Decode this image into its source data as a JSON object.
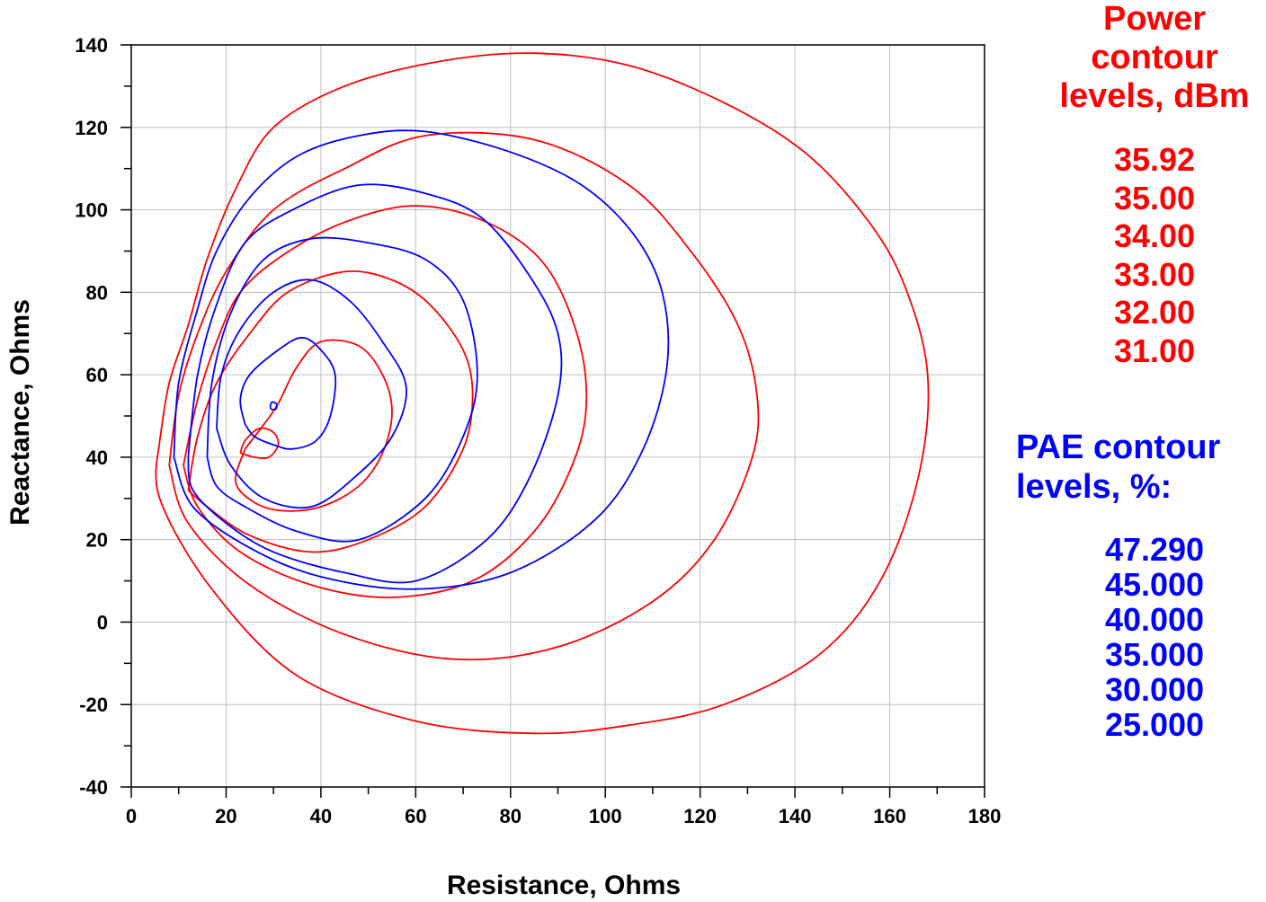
{
  "chart_data": {
    "type": "contour",
    "title": "",
    "xlabel": "Resistance, Ohms",
    "ylabel": "Reactance, Ohms",
    "xlim": [
      0,
      180
    ],
    "ylim": [
      -40,
      140
    ],
    "x_ticks": [
      0,
      20,
      40,
      60,
      80,
      100,
      120,
      140,
      160,
      180
    ],
    "y_ticks": [
      -40,
      -20,
      0,
      20,
      40,
      60,
      80,
      100,
      120,
      140
    ],
    "grid": true,
    "power_legend": {
      "title_lines": [
        "Power",
        "contour",
        "levels, dBm"
      ],
      "levels": [
        "35.92",
        "35.00",
        "34.00",
        "33.00",
        "32.00",
        "31.00"
      ]
    },
    "pae_legend": {
      "title_lines": [
        "PAE contour",
        "levels, %:"
      ],
      "levels": [
        "47.290",
        "45.000",
        "40.000",
        "35.000",
        "30.000",
        "25.000"
      ]
    },
    "colors": {
      "power": "#ff0000",
      "pae": "#0000ff",
      "grid": "#c0c0c0",
      "axis": "#000000"
    },
    "series": [
      {
        "group": "power",
        "level": "35.92",
        "points": [
          [
            23,
            41
          ],
          [
            26,
            40
          ],
          [
            29,
            40
          ],
          [
            31,
            43
          ],
          [
            30,
            46
          ],
          [
            27,
            47
          ],
          [
            24,
            44
          ],
          [
            23,
            41
          ]
        ]
      },
      {
        "group": "power",
        "level": "35.00",
        "points": [
          [
            24,
            42
          ],
          [
            28,
            48
          ],
          [
            31,
            53
          ],
          [
            35,
            62
          ],
          [
            40,
            68
          ],
          [
            48,
            67
          ],
          [
            53,
            60
          ],
          [
            55,
            51
          ],
          [
            53,
            41
          ],
          [
            48,
            33
          ],
          [
            40,
            28
          ],
          [
            32,
            27
          ],
          [
            26,
            29
          ],
          [
            22,
            34
          ],
          [
            24,
            42
          ]
        ]
      },
      {
        "group": "power",
        "level": "34.00",
        "points": [
          [
            12,
            32
          ],
          [
            14,
            45
          ],
          [
            18,
            58
          ],
          [
            25,
            70
          ],
          [
            33,
            80
          ],
          [
            45,
            85
          ],
          [
            55,
            83
          ],
          [
            63,
            77
          ],
          [
            70,
            66
          ],
          [
            72,
            55
          ],
          [
            70,
            42
          ],
          [
            62,
            28
          ],
          [
            50,
            20
          ],
          [
            38,
            17
          ],
          [
            25,
            21
          ],
          [
            16,
            28
          ],
          [
            12,
            32
          ]
        ]
      },
      {
        "group": "power",
        "level": "33.00",
        "points": [
          [
            11,
            38
          ],
          [
            14,
            54
          ],
          [
            18,
            68
          ],
          [
            23,
            80
          ],
          [
            32,
            89
          ],
          [
            45,
            97
          ],
          [
            60,
            101
          ],
          [
            75,
            97
          ],
          [
            87,
            87
          ],
          [
            94,
            70
          ],
          [
            96,
            53
          ],
          [
            93,
            38
          ],
          [
            85,
            22
          ],
          [
            72,
            10
          ],
          [
            55,
            6
          ],
          [
            38,
            9
          ],
          [
            23,
            17
          ],
          [
            14,
            28
          ],
          [
            11,
            38
          ]
        ]
      },
      {
        "group": "power",
        "level": "32.00",
        "points": [
          [
            8,
            38
          ],
          [
            10,
            55
          ],
          [
            14,
            70
          ],
          [
            20,
            85
          ],
          [
            30,
            100
          ],
          [
            45,
            110
          ],
          [
            62,
            118
          ],
          [
            85,
            117
          ],
          [
            105,
            106
          ],
          [
            118,
            90
          ],
          [
            128,
            72
          ],
          [
            132,
            55
          ],
          [
            131,
            40
          ],
          [
            123,
            20
          ],
          [
            110,
            5
          ],
          [
            90,
            -6
          ],
          [
            68,
            -9
          ],
          [
            45,
            -3
          ],
          [
            25,
            9
          ],
          [
            12,
            24
          ],
          [
            8,
            38
          ]
        ]
      },
      {
        "group": "power",
        "level": "31.00",
        "points": [
          [
            6,
            44
          ],
          [
            8,
            58
          ],
          [
            12,
            72
          ],
          [
            16,
            88
          ],
          [
            22,
            105
          ],
          [
            30,
            120
          ],
          [
            45,
            130
          ],
          [
            65,
            136
          ],
          [
            85,
            138
          ],
          [
            105,
            135
          ],
          [
            125,
            126
          ],
          [
            142,
            114
          ],
          [
            155,
            98
          ],
          [
            163,
            82
          ],
          [
            168,
            60
          ],
          [
            166,
            35
          ],
          [
            158,
            10
          ],
          [
            145,
            -8
          ],
          [
            125,
            -20
          ],
          [
            105,
            -25
          ],
          [
            85,
            -27
          ],
          [
            60,
            -24
          ],
          [
            35,
            -13
          ],
          [
            17,
            8
          ],
          [
            6,
            30
          ],
          [
            6,
            44
          ]
        ]
      },
      {
        "group": "pae",
        "level": "47.290",
        "points": [
          [
            29.3,
            52.1
          ],
          [
            29.6,
            51.6
          ],
          [
            30.4,
            51.6
          ],
          [
            30.7,
            52.3
          ],
          [
            30.5,
            53.1
          ],
          [
            29.6,
            53.3
          ],
          [
            29.3,
            52.1
          ]
        ]
      },
      {
        "group": "pae",
        "level": "45.000",
        "points": [
          [
            24,
            48
          ],
          [
            23,
            54
          ],
          [
            25,
            60
          ],
          [
            31,
            66
          ],
          [
            36,
            69
          ],
          [
            40,
            66
          ],
          [
            43,
            60
          ],
          [
            42,
            50
          ],
          [
            39,
            44
          ],
          [
            34,
            42
          ],
          [
            30,
            43
          ],
          [
            26,
            45
          ],
          [
            24,
            48
          ]
        ]
      },
      {
        "group": "pae",
        "level": "40.000",
        "points": [
          [
            18,
            47
          ],
          [
            19,
            60
          ],
          [
            23,
            71
          ],
          [
            30,
            80
          ],
          [
            38,
            83
          ],
          [
            46,
            78
          ],
          [
            53,
            68
          ],
          [
            58,
            57
          ],
          [
            55,
            45
          ],
          [
            47,
            35
          ],
          [
            38,
            28
          ],
          [
            28,
            30
          ],
          [
            21,
            38
          ],
          [
            18,
            47
          ]
        ]
      },
      {
        "group": "pae",
        "level": "35.000",
        "points": [
          [
            16,
            40
          ],
          [
            17,
            58
          ],
          [
            21,
            75
          ],
          [
            28,
            88
          ],
          [
            38,
            93
          ],
          [
            50,
            92
          ],
          [
            62,
            88
          ],
          [
            70,
            78
          ],
          [
            73,
            60
          ],
          [
            70,
            45
          ],
          [
            62,
            30
          ],
          [
            48,
            20
          ],
          [
            35,
            22
          ],
          [
            24,
            28
          ],
          [
            18,
            33
          ],
          [
            16,
            40
          ]
        ]
      },
      {
        "group": "pae",
        "level": "30.000",
        "points": [
          [
            12,
            40
          ],
          [
            14,
            60
          ],
          [
            18,
            77
          ],
          [
            24,
            92
          ],
          [
            34,
            100
          ],
          [
            48,
            106
          ],
          [
            62,
            104
          ],
          [
            74,
            98
          ],
          [
            84,
            84
          ],
          [
            90,
            70
          ],
          [
            90,
            55
          ],
          [
            84,
            35
          ],
          [
            75,
            20
          ],
          [
            60,
            10
          ],
          [
            45,
            12
          ],
          [
            30,
            17
          ],
          [
            20,
            24
          ],
          [
            13,
            32
          ],
          [
            12,
            40
          ]
        ]
      },
      {
        "group": "pae",
        "level": "25.000",
        "points": [
          [
            9,
            40
          ],
          [
            10,
            58
          ],
          [
            14,
            76
          ],
          [
            18,
            90
          ],
          [
            25,
            103
          ],
          [
            35,
            113
          ],
          [
            48,
            118
          ],
          [
            62,
            119
          ],
          [
            80,
            114
          ],
          [
            95,
            106
          ],
          [
            106,
            94
          ],
          [
            112,
            80
          ],
          [
            113,
            62
          ],
          [
            108,
            42
          ],
          [
            98,
            25
          ],
          [
            80,
            12
          ],
          [
            60,
            8
          ],
          [
            40,
            11
          ],
          [
            25,
            18
          ],
          [
            13,
            28
          ],
          [
            9,
            40
          ]
        ]
      }
    ]
  }
}
